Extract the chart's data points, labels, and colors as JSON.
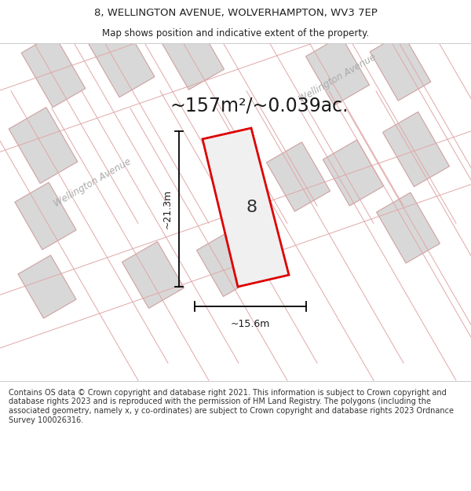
{
  "title_line1": "8, WELLINGTON AVENUE, WOLVERHAMPTON, WV3 7EP",
  "title_line2": "Map shows position and indicative extent of the property.",
  "area_text": "~157m²/~0.039ac.",
  "dimension_width": "~15.6m",
  "dimension_height": "~21.3m",
  "plot_number": "8",
  "footer_text": "Contains OS data © Crown copyright and database right 2021. This information is subject to Crown copyright and database rights 2023 and is reproduced with the permission of HM Land Registry. The polygons (including the associated geometry, namely x, y co-ordinates) are subject to Crown copyright and database rights 2023 Ordnance Survey 100026316.",
  "map_bg": "#f8f8f8",
  "plot_outline_color": "#dd0000",
  "plot_fill": "#f0f0f0",
  "building_fill": "#d8d8d8",
  "building_edge": "#d0a0a0",
  "road_line_color": "#e0a8a8",
  "street_label_color": "#aaaaaa",
  "title_color": "#222222",
  "footer_color": "#333333",
  "white": "#ffffff"
}
